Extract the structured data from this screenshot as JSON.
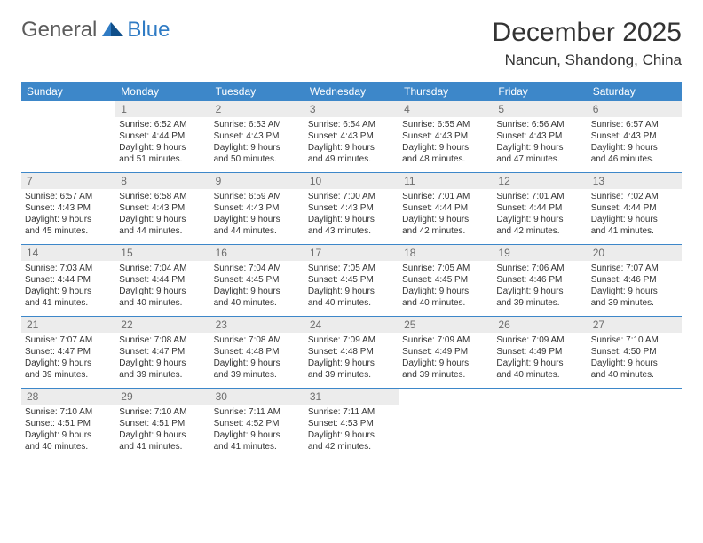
{
  "logo": {
    "general": "General",
    "blue": "Blue"
  },
  "title": "December 2025",
  "location": "Nancun, Shandong, China",
  "colors": {
    "header_bg": "#3d87c9",
    "header_text": "#ffffff",
    "daynum_bg": "#ececec",
    "daynum_text": "#6d6d6d",
    "body_text": "#333333",
    "divider": "#3d87c9",
    "logo_gray": "#5c5c5c",
    "logo_blue": "#2f7bc4",
    "page_bg": "#ffffff"
  },
  "day_headers": [
    "Sunday",
    "Monday",
    "Tuesday",
    "Wednesday",
    "Thursday",
    "Friday",
    "Saturday"
  ],
  "weeks": [
    [
      {
        "n": "",
        "lines": []
      },
      {
        "n": "1",
        "lines": [
          "Sunrise: 6:52 AM",
          "Sunset: 4:44 PM",
          "Daylight: 9 hours",
          "and 51 minutes."
        ]
      },
      {
        "n": "2",
        "lines": [
          "Sunrise: 6:53 AM",
          "Sunset: 4:43 PM",
          "Daylight: 9 hours",
          "and 50 minutes."
        ]
      },
      {
        "n": "3",
        "lines": [
          "Sunrise: 6:54 AM",
          "Sunset: 4:43 PM",
          "Daylight: 9 hours",
          "and 49 minutes."
        ]
      },
      {
        "n": "4",
        "lines": [
          "Sunrise: 6:55 AM",
          "Sunset: 4:43 PM",
          "Daylight: 9 hours",
          "and 48 minutes."
        ]
      },
      {
        "n": "5",
        "lines": [
          "Sunrise: 6:56 AM",
          "Sunset: 4:43 PM",
          "Daylight: 9 hours",
          "and 47 minutes."
        ]
      },
      {
        "n": "6",
        "lines": [
          "Sunrise: 6:57 AM",
          "Sunset: 4:43 PM",
          "Daylight: 9 hours",
          "and 46 minutes."
        ]
      }
    ],
    [
      {
        "n": "7",
        "lines": [
          "Sunrise: 6:57 AM",
          "Sunset: 4:43 PM",
          "Daylight: 9 hours",
          "and 45 minutes."
        ]
      },
      {
        "n": "8",
        "lines": [
          "Sunrise: 6:58 AM",
          "Sunset: 4:43 PM",
          "Daylight: 9 hours",
          "and 44 minutes."
        ]
      },
      {
        "n": "9",
        "lines": [
          "Sunrise: 6:59 AM",
          "Sunset: 4:43 PM",
          "Daylight: 9 hours",
          "and 44 minutes."
        ]
      },
      {
        "n": "10",
        "lines": [
          "Sunrise: 7:00 AM",
          "Sunset: 4:43 PM",
          "Daylight: 9 hours",
          "and 43 minutes."
        ]
      },
      {
        "n": "11",
        "lines": [
          "Sunrise: 7:01 AM",
          "Sunset: 4:44 PM",
          "Daylight: 9 hours",
          "and 42 minutes."
        ]
      },
      {
        "n": "12",
        "lines": [
          "Sunrise: 7:01 AM",
          "Sunset: 4:44 PM",
          "Daylight: 9 hours",
          "and 42 minutes."
        ]
      },
      {
        "n": "13",
        "lines": [
          "Sunrise: 7:02 AM",
          "Sunset: 4:44 PM",
          "Daylight: 9 hours",
          "and 41 minutes."
        ]
      }
    ],
    [
      {
        "n": "14",
        "lines": [
          "Sunrise: 7:03 AM",
          "Sunset: 4:44 PM",
          "Daylight: 9 hours",
          "and 41 minutes."
        ]
      },
      {
        "n": "15",
        "lines": [
          "Sunrise: 7:04 AM",
          "Sunset: 4:44 PM",
          "Daylight: 9 hours",
          "and 40 minutes."
        ]
      },
      {
        "n": "16",
        "lines": [
          "Sunrise: 7:04 AM",
          "Sunset: 4:45 PM",
          "Daylight: 9 hours",
          "and 40 minutes."
        ]
      },
      {
        "n": "17",
        "lines": [
          "Sunrise: 7:05 AM",
          "Sunset: 4:45 PM",
          "Daylight: 9 hours",
          "and 40 minutes."
        ]
      },
      {
        "n": "18",
        "lines": [
          "Sunrise: 7:05 AM",
          "Sunset: 4:45 PM",
          "Daylight: 9 hours",
          "and 40 minutes."
        ]
      },
      {
        "n": "19",
        "lines": [
          "Sunrise: 7:06 AM",
          "Sunset: 4:46 PM",
          "Daylight: 9 hours",
          "and 39 minutes."
        ]
      },
      {
        "n": "20",
        "lines": [
          "Sunrise: 7:07 AM",
          "Sunset: 4:46 PM",
          "Daylight: 9 hours",
          "and 39 minutes."
        ]
      }
    ],
    [
      {
        "n": "21",
        "lines": [
          "Sunrise: 7:07 AM",
          "Sunset: 4:47 PM",
          "Daylight: 9 hours",
          "and 39 minutes."
        ]
      },
      {
        "n": "22",
        "lines": [
          "Sunrise: 7:08 AM",
          "Sunset: 4:47 PM",
          "Daylight: 9 hours",
          "and 39 minutes."
        ]
      },
      {
        "n": "23",
        "lines": [
          "Sunrise: 7:08 AM",
          "Sunset: 4:48 PM",
          "Daylight: 9 hours",
          "and 39 minutes."
        ]
      },
      {
        "n": "24",
        "lines": [
          "Sunrise: 7:09 AM",
          "Sunset: 4:48 PM",
          "Daylight: 9 hours",
          "and 39 minutes."
        ]
      },
      {
        "n": "25",
        "lines": [
          "Sunrise: 7:09 AM",
          "Sunset: 4:49 PM",
          "Daylight: 9 hours",
          "and 39 minutes."
        ]
      },
      {
        "n": "26",
        "lines": [
          "Sunrise: 7:09 AM",
          "Sunset: 4:49 PM",
          "Daylight: 9 hours",
          "and 40 minutes."
        ]
      },
      {
        "n": "27",
        "lines": [
          "Sunrise: 7:10 AM",
          "Sunset: 4:50 PM",
          "Daylight: 9 hours",
          "and 40 minutes."
        ]
      }
    ],
    [
      {
        "n": "28",
        "lines": [
          "Sunrise: 7:10 AM",
          "Sunset: 4:51 PM",
          "Daylight: 9 hours",
          "and 40 minutes."
        ]
      },
      {
        "n": "29",
        "lines": [
          "Sunrise: 7:10 AM",
          "Sunset: 4:51 PM",
          "Daylight: 9 hours",
          "and 41 minutes."
        ]
      },
      {
        "n": "30",
        "lines": [
          "Sunrise: 7:11 AM",
          "Sunset: 4:52 PM",
          "Daylight: 9 hours",
          "and 41 minutes."
        ]
      },
      {
        "n": "31",
        "lines": [
          "Sunrise: 7:11 AM",
          "Sunset: 4:53 PM",
          "Daylight: 9 hours",
          "and 42 minutes."
        ]
      },
      {
        "n": "",
        "lines": []
      },
      {
        "n": "",
        "lines": []
      },
      {
        "n": "",
        "lines": []
      }
    ]
  ]
}
